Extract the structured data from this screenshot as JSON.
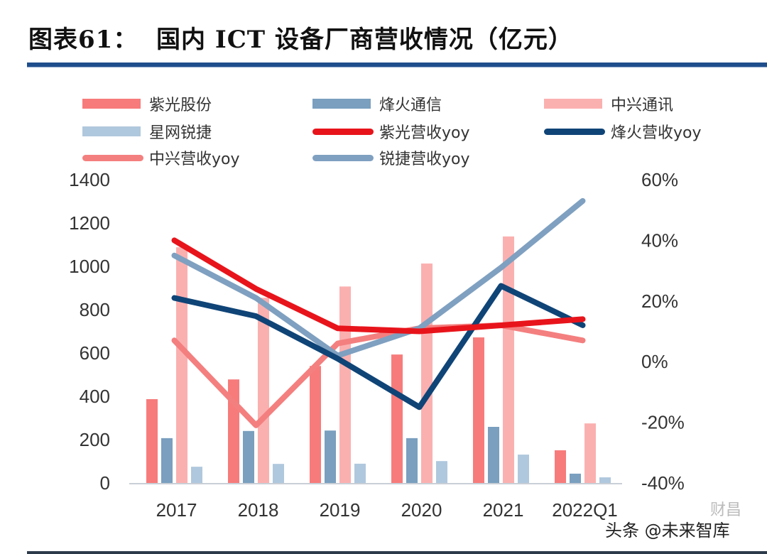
{
  "header": {
    "title": "图表61：  国内 ICT 设备厂商营收情况（亿元）"
  },
  "watermark": {
    "text": "头条 @未来智库",
    "logo_text": "财昌"
  },
  "chart_data": {
    "type": "bar",
    "title": "国内 ICT 设备厂商营收情况（亿元）",
    "xlabel": "",
    "ylabel": "",
    "categories": [
      "2017",
      "2018",
      "2019",
      "2020",
      "2021",
      "2022Q1"
    ],
    "y_left": {
      "range": [
        0,
        1400
      ],
      "ticks": [
        "0",
        "200",
        "400",
        "600",
        "800",
        "1000",
        "1200",
        "1400"
      ],
      "tick_values": [
        0,
        200,
        400,
        600,
        800,
        1000,
        1200,
        1400
      ]
    },
    "y_right": {
      "range": [
        -40,
        60
      ],
      "ticks": [
        "-40%",
        "-20%",
        "0%",
        "20%",
        "40%",
        "60%"
      ],
      "tick_values": [
        -40,
        -20,
        0,
        20,
        40,
        60
      ]
    },
    "grid": false,
    "legend_position": "top",
    "bar_series": [
      {
        "name": "紫光股份",
        "color": "#f77b7b",
        "values": [
          387,
          478,
          540,
          593,
          672,
          151
        ]
      },
      {
        "name": "烽火通信",
        "color": "#7a9fbf",
        "values": [
          207,
          240,
          242,
          207,
          259,
          43
        ]
      },
      {
        "name": "中兴通讯",
        "color": "#fbb0b0",
        "values": [
          1088,
          855,
          907,
          1013,
          1138,
          275
        ]
      },
      {
        "name": "星网锐捷",
        "color": "#b0c8dd",
        "values": [
          75,
          88,
          89,
          101,
          131,
          26
        ]
      }
    ],
    "line_series": [
      {
        "name": "紫光营收yoy",
        "color": "#e8141b",
        "axis": "right",
        "values": [
          40,
          24,
          11,
          10,
          12,
          14
        ]
      },
      {
        "name": "烽火营收yoy",
        "color": "#0f4477",
        "axis": "right",
        "values": [
          21,
          15,
          1,
          -15,
          25,
          12
        ]
      },
      {
        "name": "中兴营收yoy",
        "color": "#f47f7f",
        "axis": "right",
        "values": [
          7,
          -21,
          6,
          11,
          12,
          7
        ]
      },
      {
        "name": "锐捷营收yoy",
        "color": "#7fa0c0",
        "axis": "right",
        "values": [
          35,
          21,
          2,
          11,
          31,
          53
        ]
      }
    ],
    "legend": [
      {
        "label": "紫光股份",
        "kind": "bar",
        "color": "#f77b7b"
      },
      {
        "label": "烽火通信",
        "kind": "bar",
        "color": "#7a9fbf"
      },
      {
        "label": "中兴通讯",
        "kind": "bar",
        "color": "#fbb0b0"
      },
      {
        "label": "星网锐捷",
        "kind": "bar",
        "color": "#b0c8dd"
      },
      {
        "label": "紫光营收yoy",
        "kind": "line",
        "color": "#e8141b"
      },
      {
        "label": "烽火营收yoy",
        "kind": "line",
        "color": "#0f4477"
      },
      {
        "label": "中兴营收yoy",
        "kind": "line",
        "color": "#f47f7f"
      },
      {
        "label": "锐捷营收yoy",
        "kind": "line",
        "color": "#7fa0c0"
      }
    ]
  }
}
